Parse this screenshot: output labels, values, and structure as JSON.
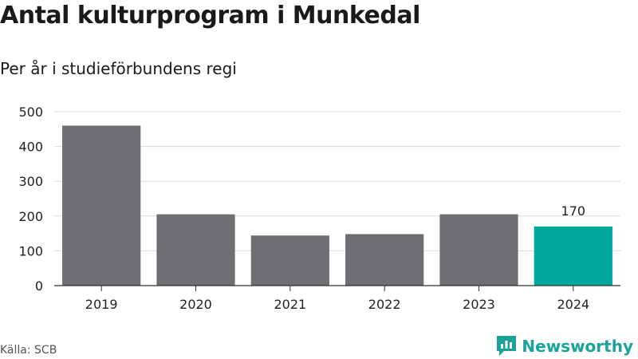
{
  "header": {
    "title": "Antal kulturprogram i Munkedal",
    "subtitle": "Per år i studieförbundens regi"
  },
  "footer": {
    "source": "Källa: SCB",
    "brand": "Newsworthy"
  },
  "colors": {
    "bar": "#6e6e73",
    "highlight": "#00a79d",
    "grid": "#d9d9d9",
    "axis": "#333333",
    "brand": "#1aa39a"
  },
  "chart_data": {
    "type": "bar",
    "categories": [
      "2019",
      "2020",
      "2021",
      "2022",
      "2023",
      "2024"
    ],
    "values": [
      460,
      205,
      144,
      148,
      205,
      170
    ],
    "highlight_index": 5,
    "data_labels": [
      {
        "index": 5,
        "text": "170"
      }
    ],
    "title": "Antal kulturprogram i Munkedal",
    "subtitle": "Per år i studieförbundens regi",
    "xlabel": "",
    "ylabel": "",
    "ylim": [
      0,
      500
    ],
    "yticks": [
      "0",
      "100",
      "200",
      "300",
      "400",
      "500"
    ],
    "grid": true,
    "legend": "none"
  }
}
